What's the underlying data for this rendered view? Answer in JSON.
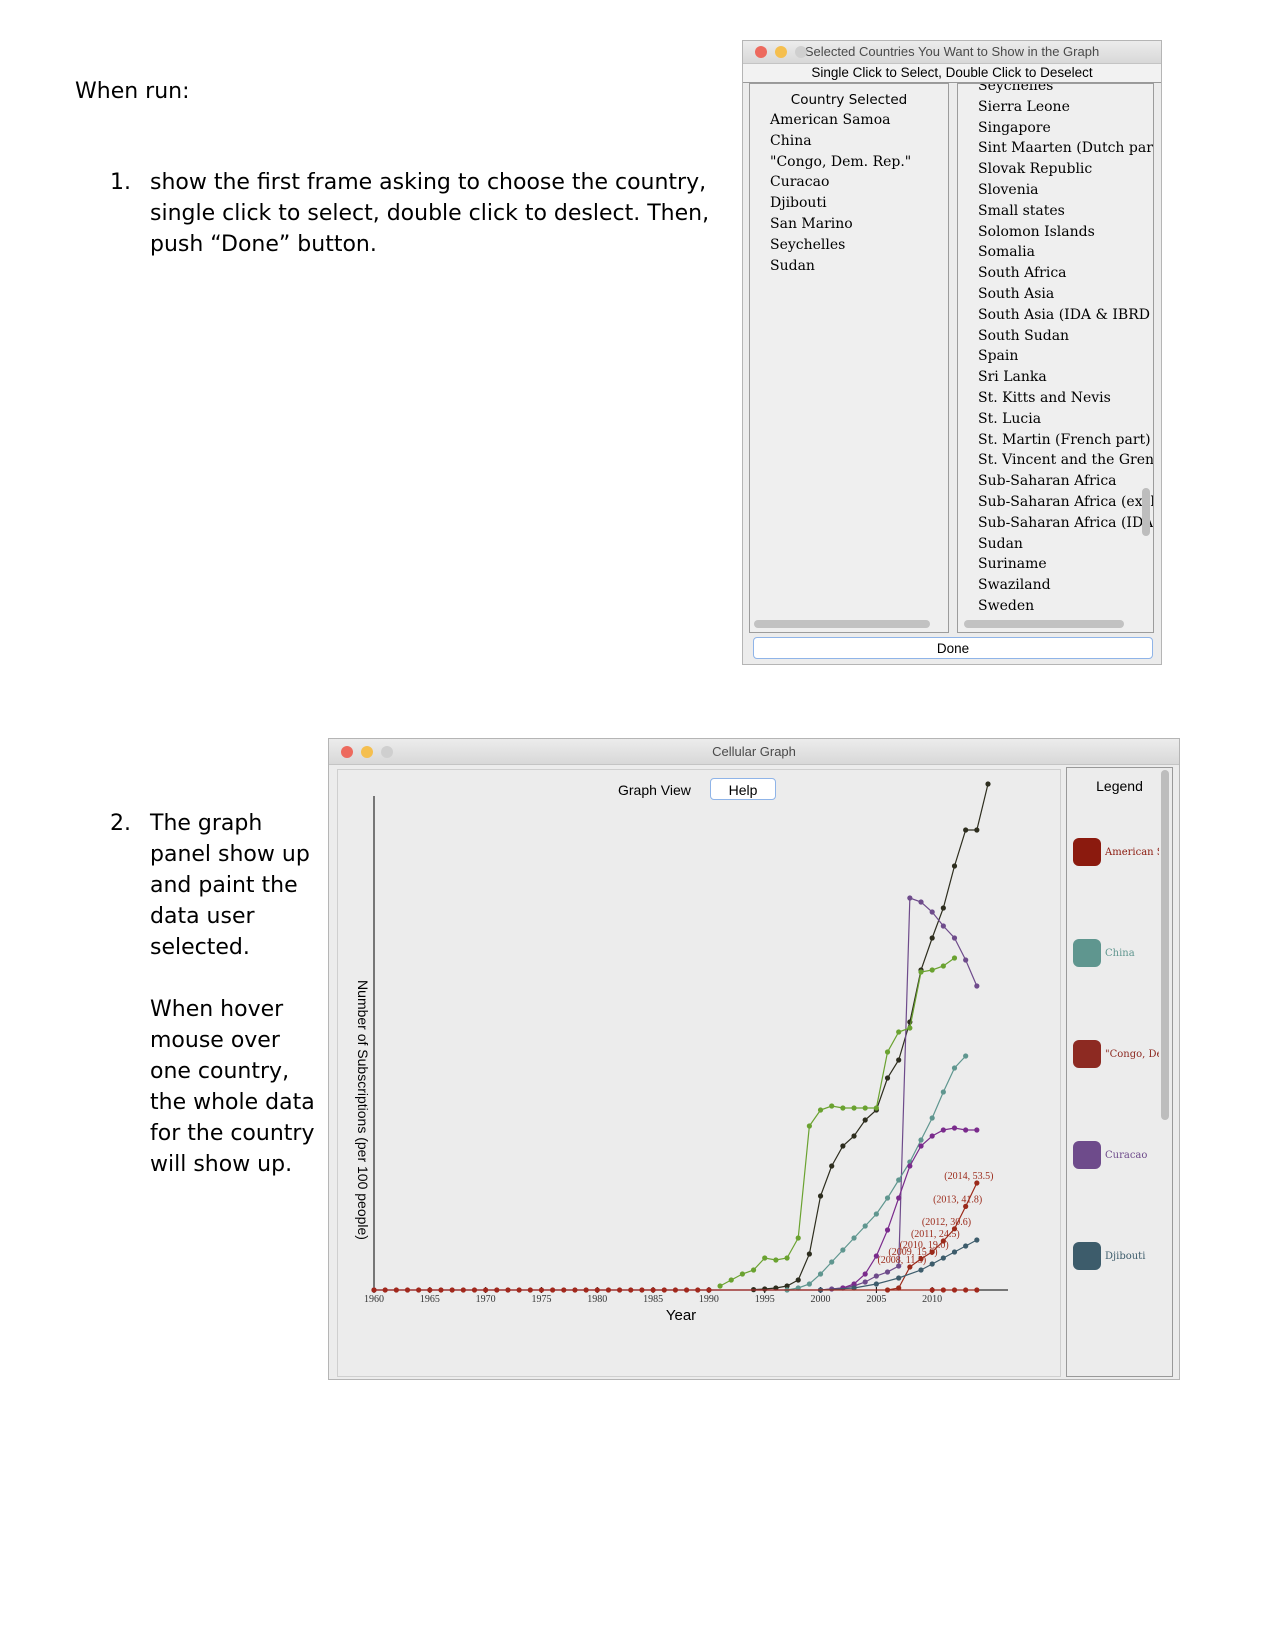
{
  "doc": {
    "intro": "When run:",
    "step1_num": "1.",
    "step1_text": "show the first frame asking to choose the country, single click to select, double click to deslect. Then, push “Done” button.",
    "step2_num": "2.",
    "step2_p1": "The graph panel show up and paint the data user selected.",
    "step2_p2": "When hover mouse over one country, the whole data for the country will show up."
  },
  "selector": {
    "title": "Selected Countries You Want to Show in the Graph",
    "subtitle": "Single Click to Select, Double Click to Deselect",
    "selected_header": "Country Selected",
    "selected": [
      "American Samoa",
      "China",
      "\"Congo, Dem. Rep.\"",
      "Curacao",
      "Djibouti",
      "San Marino",
      "Seychelles",
      "Sudan"
    ],
    "available": [
      "Seychelles",
      "Sierra Leone",
      "Singapore",
      "Sint Maarten (Dutch part)",
      "Slovak Republic",
      "Slovenia",
      "Small states",
      "Solomon Islands",
      "Somalia",
      "South Africa",
      "South Asia",
      "South Asia (IDA & IBRD",
      "South Sudan",
      "Spain",
      "Sri Lanka",
      "St. Kitts and Nevis",
      "St. Lucia",
      "St. Martin (French part)",
      "St. Vincent and the Grena",
      "Sub-Saharan Africa",
      "Sub-Saharan Africa (excl",
      "Sub-Saharan Africa (IDA",
      "Sudan",
      "Suriname",
      "Swaziland",
      "Sweden"
    ],
    "done_label": "Done"
  },
  "graph_window": {
    "title": "Cellular Graph",
    "view_label": "Graph View",
    "help_label": "Help",
    "legend_title": "Legend",
    "legend": [
      {
        "label": "American S",
        "color": "#8b1a0e"
      },
      {
        "label": "China",
        "color": "#5f968f"
      },
      {
        "label": "\"Congo, De",
        "color": "#8d2a22"
      },
      {
        "label": "Curacao",
        "color": "#6e4b8b"
      },
      {
        "label": "Djibouti",
        "color": "#3d5c6b"
      }
    ]
  },
  "chart_data": {
    "type": "line",
    "xlabel": "Year",
    "ylabel": "Number of Subscriptions (per 100 people)",
    "xticks": [
      "1960",
      "1965",
      "1970",
      "1975",
      "1980",
      "1985",
      "1990",
      "1995",
      "2000",
      "2005",
      "2010"
    ],
    "xlim": [
      1960,
      2015
    ],
    "annotations": [
      "(2014, 53.5)",
      "(2013, 41.8)",
      "(2012, 30.6)",
      "(2011, 24.5)",
      "(2010, 19.0)",
      "(2009, 15.6)",
      "(2008, 11.5)"
    ],
    "series": [
      {
        "color": "#2d2d1e",
        "values": [
          [
            1994,
            0.2
          ],
          [
            1995,
            0.5
          ],
          [
            1996,
            1
          ],
          [
            1997,
            2
          ],
          [
            1998,
            5
          ],
          [
            1999,
            18
          ],
          [
            2000,
            47
          ],
          [
            2001,
            62
          ],
          [
            2002,
            72
          ],
          [
            2003,
            77
          ],
          [
            2004,
            85
          ],
          [
            2005,
            90
          ],
          [
            2006,
            106
          ],
          [
            2007,
            115
          ],
          [
            2008,
            134
          ],
          [
            2009,
            160
          ],
          [
            2010,
            176
          ],
          [
            2011,
            191
          ],
          [
            2012,
            212
          ],
          [
            2013,
            230
          ],
          [
            2014,
            230
          ],
          [
            2015,
            253
          ]
        ]
      },
      {
        "color": "#6e4b8b",
        "values": [
          [
            1960,
            0
          ],
          [
            1990,
            0
          ],
          [
            2000,
            0
          ],
          [
            2001,
            0.5
          ],
          [
            2002,
            1
          ],
          [
            2003,
            2
          ],
          [
            2004,
            4
          ],
          [
            2005,
            7
          ],
          [
            2006,
            9
          ],
          [
            2007,
            12
          ],
          [
            2008,
            196
          ],
          [
            2009,
            194
          ],
          [
            2010,
            189
          ],
          [
            2011,
            182
          ],
          [
            2012,
            176
          ],
          [
            2013,
            165
          ],
          [
            2014,
            152
          ]
        ]
      },
      {
        "color": "#6aa230",
        "values": [
          [
            1991,
            2
          ],
          [
            1992,
            5
          ],
          [
            1993,
            8
          ],
          [
            1994,
            10
          ],
          [
            1995,
            16
          ],
          [
            1996,
            15
          ],
          [
            1997,
            16
          ],
          [
            1998,
            26
          ],
          [
            1999,
            82
          ],
          [
            2000,
            90
          ],
          [
            2001,
            92
          ],
          [
            2002,
            91
          ],
          [
            2003,
            91
          ],
          [
            2004,
            91
          ],
          [
            2005,
            91
          ],
          [
            2006,
            119
          ],
          [
            2007,
            129
          ],
          [
            2008,
            131
          ],
          [
            2009,
            159
          ],
          [
            2010,
            160
          ],
          [
            2011,
            162
          ],
          [
            2012,
            166
          ]
        ]
      },
      {
        "color": "#5f968f",
        "values": [
          [
            1997,
            0
          ],
          [
            1998,
            1
          ],
          [
            1999,
            3
          ],
          [
            2000,
            8
          ],
          [
            2001,
            14
          ],
          [
            2002,
            20
          ],
          [
            2003,
            26
          ],
          [
            2004,
            32
          ],
          [
            2005,
            38
          ],
          [
            2006,
            46
          ],
          [
            2007,
            55
          ],
          [
            2008,
            64
          ],
          [
            2009,
            75
          ],
          [
            2010,
            86
          ],
          [
            2011,
            99
          ],
          [
            2012,
            111
          ],
          [
            2013,
            117
          ]
        ]
      },
      {
        "color": "#7a2b8c",
        "values": [
          [
            2000,
            0
          ],
          [
            2002,
            1
          ],
          [
            2003,
            3
          ],
          [
            2004,
            8
          ],
          [
            2005,
            17
          ],
          [
            2006,
            30
          ],
          [
            2007,
            46
          ],
          [
            2008,
            62
          ],
          [
            2009,
            72
          ],
          [
            2010,
            77
          ],
          [
            2011,
            80
          ],
          [
            2012,
            81
          ],
          [
            2013,
            80
          ],
          [
            2014,
            80
          ]
        ]
      },
      {
        "color": "#9b2a1a",
        "values": [
          [
            2006,
            0
          ],
          [
            2007,
            1
          ],
          [
            2008,
            11.5
          ],
          [
            2009,
            15.6
          ],
          [
            2010,
            19.0
          ],
          [
            2011,
            24.5
          ],
          [
            2012,
            30.6
          ],
          [
            2013,
            41.8
          ],
          [
            2014,
            53.5
          ]
        ]
      },
      {
        "color": "#3d5c6b",
        "values": [
          [
            2000,
            0
          ],
          [
            2003,
            1
          ],
          [
            2005,
            3
          ],
          [
            2007,
            6
          ],
          [
            2009,
            10
          ],
          [
            2010,
            13
          ],
          [
            2011,
            16
          ],
          [
            2012,
            19
          ],
          [
            2013,
            22
          ],
          [
            2014,
            25
          ]
        ]
      },
      {
        "color": "#a1281c",
        "values": [
          [
            1960,
            0
          ],
          [
            1961,
            0
          ],
          [
            1962,
            0
          ],
          [
            1963,
            0
          ],
          [
            1964,
            0
          ],
          [
            1965,
            0
          ],
          [
            1966,
            0
          ],
          [
            1967,
            0
          ],
          [
            1968,
            0
          ],
          [
            1969,
            0
          ],
          [
            1970,
            0
          ],
          [
            1971,
            0
          ],
          [
            1972,
            0
          ],
          [
            1973,
            0
          ],
          [
            1974,
            0
          ],
          [
            1975,
            0
          ],
          [
            1976,
            0
          ],
          [
            1977,
            0
          ],
          [
            1978,
            0
          ],
          [
            1979,
            0
          ],
          [
            1980,
            0
          ],
          [
            1981,
            0
          ],
          [
            1982,
            0
          ],
          [
            1983,
            0
          ],
          [
            1984,
            0
          ],
          [
            1985,
            0
          ],
          [
            1986,
            0
          ],
          [
            1987,
            0
          ],
          [
            1988,
            0
          ],
          [
            1989,
            0
          ],
          [
            1990,
            0
          ],
          [
            2010,
            0
          ],
          [
            2011,
            0
          ],
          [
            2012,
            0
          ],
          [
            2013,
            0
          ],
          [
            2014,
            0
          ]
        ]
      }
    ]
  }
}
